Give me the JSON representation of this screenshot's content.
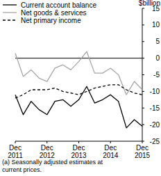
{
  "chart_data": {
    "type": "line",
    "y_label": "$billion",
    "note": "(a) Seasonally adjusted estimates at current prices.",
    "categories": [
      "Dec 2011",
      null,
      null,
      null,
      "Dec 2012",
      null,
      null,
      null,
      "Dec 2013",
      null,
      null,
      null,
      "Dec 2014",
      null,
      null,
      null,
      "Dec 2015"
    ],
    "series": [
      {
        "name": "Current account balance",
        "color": "#000000",
        "line_style": "solid",
        "values": [
          -11,
          -17,
          -13,
          -15.5,
          -17,
          -13,
          -12.5,
          -14.5,
          -12.5,
          -8.5,
          -13.5,
          -12.5,
          -11,
          -13,
          -21,
          -18.5,
          -20.5
        ]
      },
      {
        "name": "Net goods & services",
        "color": "#a6a6a6",
        "line_style": "solid",
        "values": [
          1.5,
          -5.5,
          -3.5,
          -6,
          -7,
          -3,
          -2,
          -3.5,
          -1,
          2,
          -4.5,
          -4.5,
          -3,
          -5,
          -11,
          -7,
          -9.5
        ]
      },
      {
        "name": "Net primary income",
        "color": "#000000",
        "line_style": "dashed",
        "values": [
          -12,
          -11,
          -9.5,
          -9.5,
          -9.5,
          -9,
          -10,
          -10.5,
          -11,
          -10,
          -9,
          -8.5,
          -8,
          -8,
          -9.5,
          -10.5,
          -11
        ]
      }
    ],
    "ylim": [
      -25,
      15
    ],
    "yticks": [
      15,
      10,
      5,
      0,
      -5,
      -10,
      -15,
      -20,
      -25
    ],
    "legend": "top-left"
  }
}
